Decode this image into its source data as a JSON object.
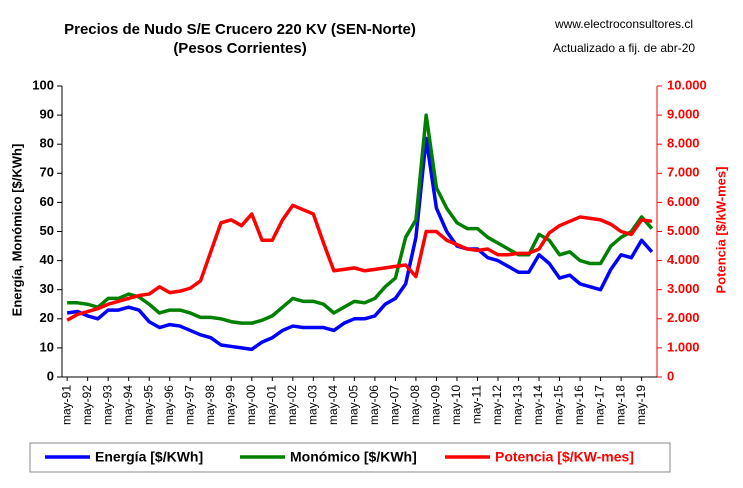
{
  "chart_data": {
    "type": "line",
    "title": "Precios de Nudo S/E Crucero 220 KV (SEN-Norte)",
    "subtitle": "(Pesos Corrientes)",
    "annotations": [
      "www.electroconsultores.cl",
      "Actualizado a fij. de abr-20"
    ],
    "y_label": "Energía, Monómico  [$/KWh]",
    "y2_label": "Potencia [$/kW-mes]",
    "categories": [
      "may-91",
      null,
      "may-92",
      null,
      "may-93",
      null,
      "may-94",
      null,
      "may-95",
      null,
      "may-96",
      null,
      "may-97",
      null,
      "may-98",
      null,
      "may-99",
      null,
      "may-00",
      null,
      "may-01",
      null,
      "may-02",
      null,
      "may-03",
      null,
      "may-04",
      null,
      "may-05",
      null,
      "may-06",
      null,
      "may-07",
      null,
      "may-08",
      null,
      "may-09",
      null,
      "may-10",
      null,
      "may-11",
      null,
      "may-12",
      null,
      "may-13",
      null,
      "may-14",
      null,
      "may-15",
      null,
      "may-16",
      null,
      "may-17",
      null,
      "may-18",
      null,
      "may-19",
      null
    ],
    "ylim": [
      0,
      100
    ],
    "yticks": [
      0,
      10,
      20,
      30,
      40,
      50,
      60,
      70,
      80,
      90,
      100
    ],
    "y2lim": [
      0,
      10000
    ],
    "y2ticks": [
      0,
      {
        "value": 1000,
        "label": "1.000"
      },
      {
        "value": 2000,
        "label": "2.000"
      },
      {
        "value": 3000,
        "label": "3.000"
      },
      {
        "value": 4000,
        "label": "4.000"
      },
      {
        "value": 5000,
        "label": "5.000"
      },
      {
        "value": 6000,
        "label": "6.000"
      },
      {
        "value": 7000,
        "label": "7.000"
      },
      {
        "value": 8000,
        "label": "8.000"
      },
      {
        "value": 9000,
        "label": "9.000"
      },
      {
        "value": 10000,
        "label": "10.000"
      }
    ],
    "y2_color": "#ff0000",
    "legend": "bottom",
    "series": [
      {
        "name": "Energía [$/KWh]",
        "color": "#0000ff",
        "values": [
          22,
          22.5,
          21,
          20,
          23,
          23,
          24,
          23,
          19,
          17,
          18,
          17.5,
          16,
          14.5,
          13.5,
          11,
          10.5,
          10,
          9.5,
          12,
          13.5,
          16,
          17.5,
          17,
          17,
          17,
          16,
          18.5,
          20,
          20,
          21,
          25,
          27,
          32,
          48,
          82,
          58,
          50,
          45,
          44,
          44,
          41,
          40,
          38,
          36,
          36,
          42,
          39,
          34,
          35,
          32,
          31,
          30,
          37,
          42,
          41,
          47,
          43
        ]
      },
      {
        "name": "Monómico [$/KWh]",
        "color": "#008000",
        "values": [
          25.5,
          25.5,
          25,
          24,
          27,
          27,
          28.5,
          27.5,
          25,
          22,
          23,
          23,
          22,
          20.5,
          20.5,
          20,
          19,
          18.5,
          18.5,
          19.5,
          21,
          24,
          27,
          26,
          26,
          25,
          22,
          24,
          26,
          25.5,
          27,
          31,
          34,
          48,
          54,
          90,
          65,
          58,
          53,
          51,
          51,
          48,
          46,
          44,
          42,
          42,
          49,
          47,
          42,
          43,
          40,
          39,
          39,
          45,
          48,
          50,
          55,
          51
        ]
      },
      {
        "name": "Potencia [$/KW-mes]",
        "color": "#ff0000",
        "axis": "y2",
        "values": [
          1950,
          2150,
          2250,
          2350,
          2500,
          2600,
          2700,
          2800,
          2850,
          3100,
          2900,
          2950,
          3050,
          3300,
          4300,
          5300,
          5400,
          5200,
          5600,
          4700,
          4700,
          5400,
          5900,
          5750,
          5600,
          4600,
          3650,
          3700,
          3750,
          3650,
          3700,
          3750,
          3800,
          3850,
          3450,
          5000,
          5000,
          4700,
          4550,
          4400,
          4350,
          4400,
          4200,
          4200,
          4250,
          4250,
          4400,
          4950,
          5200,
          5350,
          5500,
          5450,
          5400,
          5250,
          5000,
          4900,
          5400,
          5350
        ]
      }
    ]
  }
}
